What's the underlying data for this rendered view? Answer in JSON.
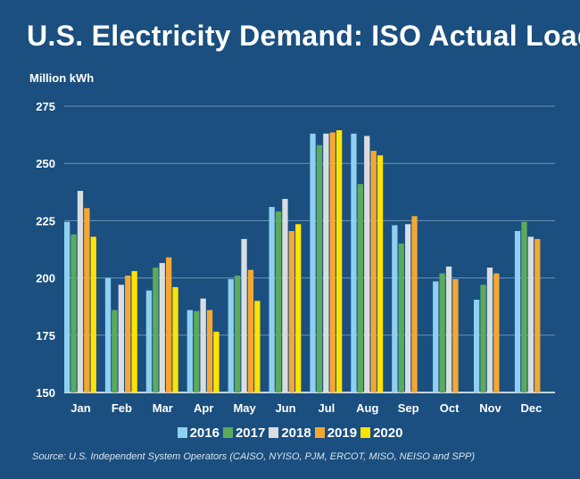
{
  "title": "U.S. Electricity Demand: ISO Actual Load",
  "source": "Source: U.S. Independent System Operators (CAISO, NYISO, PJM, ERCOT, MISO, NEISO and SPP)",
  "colors": {
    "background": "#1a4f7f",
    "grid": "#6f93b5",
    "series": [
      "#8fd0f0",
      "#5caa5c",
      "#d9dde0",
      "#f5a733",
      "#ffe300"
    ]
  },
  "chart_data": {
    "type": "bar",
    "ylabel": "Million kWh",
    "ylim": [
      150,
      275
    ],
    "yticks": [
      150,
      175,
      200,
      225,
      250,
      275
    ],
    "grid": true,
    "legend_position": "bottom",
    "categories": [
      "Jan",
      "Feb",
      "Mar",
      "Apr",
      "May",
      "Jun",
      "Jul",
      "Aug",
      "Sep",
      "Oct",
      "Nov",
      "Dec"
    ],
    "series": [
      {
        "name": "2016",
        "values": [
          224.5,
          200,
          194.5,
          186,
          199.5,
          231,
          263,
          263,
          223,
          198.5,
          190.5,
          220.5
        ]
      },
      {
        "name": "2017",
        "values": [
          219,
          186,
          204.5,
          185.5,
          201,
          229,
          258,
          241,
          215,
          202,
          197,
          224.5
        ]
      },
      {
        "name": "2018",
        "values": [
          238,
          197,
          206.5,
          191,
          217,
          234.5,
          263,
          262,
          223.5,
          205,
          204.5,
          218
        ]
      },
      {
        "name": "2019",
        "values": [
          230.5,
          201,
          209,
          186,
          203.5,
          220.5,
          263.5,
          255.5,
          227,
          199.5,
          202,
          217
        ]
      },
      {
        "name": "2020",
        "values": [
          218,
          203,
          196,
          176.5,
          190,
          223.5,
          264.5,
          253.5,
          null,
          null,
          null,
          null
        ]
      }
    ]
  }
}
